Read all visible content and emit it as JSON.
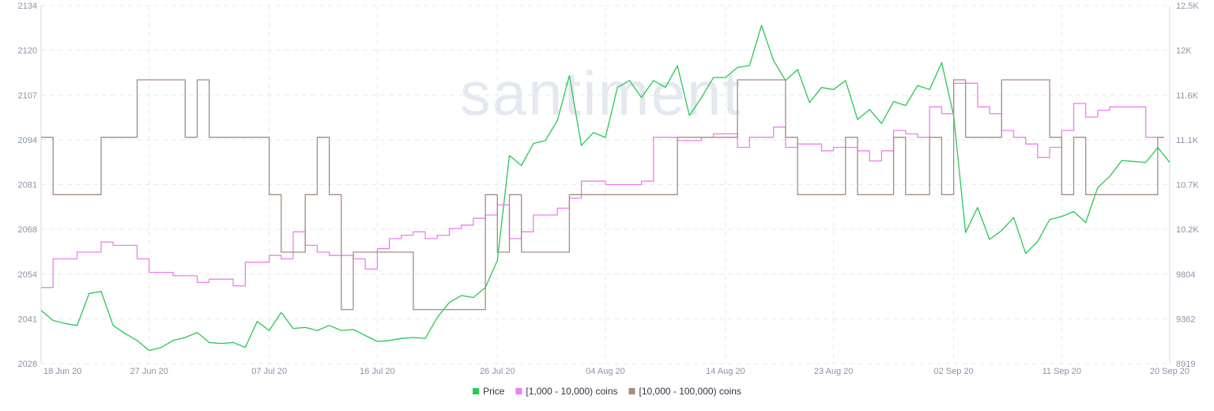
{
  "watermark": "santiment",
  "colors": {
    "price": "#26c953",
    "coins_1k_10k": "#f07cf2",
    "coins_10k_100k": "#a38d82",
    "grid": "#e6e9ef",
    "axis_text": "#8a94a6"
  },
  "chart_data": {
    "type": "line",
    "title": "",
    "xlabel": "",
    "grid": true,
    "legend_placement": "bottom-center",
    "x_ticks": [
      "18 Jun 20",
      "27 Jun 20",
      "07 Jul 20",
      "16 Jul 20",
      "26 Jul 20",
      "04 Aug 20",
      "14 Aug 20",
      "23 Aug 20",
      "02 Sep 20",
      "11 Sep 20",
      "20 Sep 20"
    ],
    "x_range": [
      "18 Jun 20",
      "20 Sep 20"
    ],
    "left_axis": {
      "ticks": [
        "2134",
        "2120",
        "2107",
        "2094",
        "2081",
        "2068",
        "2054",
        "2041",
        "2028"
      ],
      "range": [
        2028,
        2134
      ]
    },
    "right_axis": {
      "ticks": [
        "12.5K",
        "12K",
        "11.6K",
        "11.1K",
        "10.7K",
        "10.2K",
        "9804",
        "9362",
        "8919"
      ],
      "range": [
        8919,
        12500
      ]
    },
    "series": [
      {
        "name": "Price",
        "axis": "right",
        "color": "#26c953",
        "points": [
          [
            "2020-06-18",
            9450
          ],
          [
            "2020-06-19",
            9350
          ],
          [
            "2020-06-20",
            9320
          ],
          [
            "2020-06-21",
            9300
          ],
          [
            "2020-06-22",
            9620
          ],
          [
            "2020-06-23",
            9640
          ],
          [
            "2020-06-24",
            9300
          ],
          [
            "2020-06-25",
            9220
          ],
          [
            "2020-06-26",
            9150
          ],
          [
            "2020-06-27",
            9050
          ],
          [
            "2020-06-28",
            9080
          ],
          [
            "2020-06-29",
            9150
          ],
          [
            "2020-06-30",
            9180
          ],
          [
            "2020-07-01",
            9230
          ],
          [
            "2020-07-02",
            9130
          ],
          [
            "2020-07-03",
            9120
          ],
          [
            "2020-07-04",
            9130
          ],
          [
            "2020-07-05",
            9080
          ],
          [
            "2020-07-06",
            9340
          ],
          [
            "2020-07-07",
            9250
          ],
          [
            "2020-07-08",
            9430
          ],
          [
            "2020-07-09",
            9270
          ],
          [
            "2020-07-10",
            9280
          ],
          [
            "2020-07-11",
            9250
          ],
          [
            "2020-07-12",
            9300
          ],
          [
            "2020-07-13",
            9250
          ],
          [
            "2020-07-14",
            9260
          ],
          [
            "2020-07-15",
            9200
          ],
          [
            "2020-07-16",
            9140
          ],
          [
            "2020-07-17",
            9150
          ],
          [
            "2020-07-18",
            9170
          ],
          [
            "2020-07-19",
            9180
          ],
          [
            "2020-07-20",
            9170
          ],
          [
            "2020-07-21",
            9380
          ],
          [
            "2020-07-22",
            9530
          ],
          [
            "2020-07-23",
            9600
          ],
          [
            "2020-07-24",
            9580
          ],
          [
            "2020-07-25",
            9680
          ],
          [
            "2020-07-26",
            9950
          ],
          [
            "2020-07-27",
            11000
          ],
          [
            "2020-07-28",
            10900
          ],
          [
            "2020-07-29",
            11120
          ],
          [
            "2020-07-30",
            11150
          ],
          [
            "2020-07-31",
            11350
          ],
          [
            "2020-08-01",
            11800
          ],
          [
            "2020-08-02",
            11100
          ],
          [
            "2020-08-03",
            11230
          ],
          [
            "2020-08-04",
            11180
          ],
          [
            "2020-08-05",
            11680
          ],
          [
            "2020-08-06",
            11750
          ],
          [
            "2020-08-07",
            11580
          ],
          [
            "2020-08-08",
            11750
          ],
          [
            "2020-08-09",
            11680
          ],
          [
            "2020-08-10",
            11900
          ],
          [
            "2020-08-11",
            11400
          ],
          [
            "2020-08-12",
            11580
          ],
          [
            "2020-08-13",
            11780
          ],
          [
            "2020-08-14",
            11780
          ],
          [
            "2020-08-15",
            11880
          ],
          [
            "2020-08-16",
            11900
          ],
          [
            "2020-08-17",
            12300
          ],
          [
            "2020-08-18",
            11950
          ],
          [
            "2020-08-19",
            11750
          ],
          [
            "2020-08-20",
            11860
          ],
          [
            "2020-08-21",
            11530
          ],
          [
            "2020-08-22",
            11680
          ],
          [
            "2020-08-23",
            11660
          ],
          [
            "2020-08-24",
            11750
          ],
          [
            "2020-08-25",
            11360
          ],
          [
            "2020-08-26",
            11460
          ],
          [
            "2020-08-27",
            11320
          ],
          [
            "2020-08-28",
            11540
          ],
          [
            "2020-08-29",
            11500
          ],
          [
            "2020-08-30",
            11700
          ],
          [
            "2020-08-31",
            11660
          ],
          [
            "2020-09-01",
            11930
          ],
          [
            "2020-09-02",
            11400
          ],
          [
            "2020-09-03",
            10230
          ],
          [
            "2020-09-04",
            10480
          ],
          [
            "2020-09-05",
            10160
          ],
          [
            "2020-09-06",
            10250
          ],
          [
            "2020-09-07",
            10380
          ],
          [
            "2020-09-08",
            10020
          ],
          [
            "2020-09-09",
            10140
          ],
          [
            "2020-09-10",
            10360
          ],
          [
            "2020-09-11",
            10390
          ],
          [
            "2020-09-12",
            10440
          ],
          [
            "2020-09-13",
            10330
          ],
          [
            "2020-09-14",
            10680
          ],
          [
            "2020-09-15",
            10790
          ],
          [
            "2020-09-16",
            10950
          ],
          [
            "2020-09-17",
            10940
          ],
          [
            "2020-09-18",
            10930
          ],
          [
            "2020-09-19",
            11080
          ],
          [
            "2020-09-20",
            10930
          ]
        ]
      },
      {
        "name": "[1,000 - 10,000) coins",
        "axis": "left",
        "color": "#f07cf2",
        "points": [
          [
            "2020-06-18",
            2050.5
          ],
          [
            "2020-06-19",
            2059
          ],
          [
            "2020-06-20",
            2059
          ],
          [
            "2020-06-21",
            2061
          ],
          [
            "2020-06-23",
            2064
          ],
          [
            "2020-06-24",
            2063
          ],
          [
            "2020-06-26",
            2059
          ],
          [
            "2020-06-27",
            2055
          ],
          [
            "2020-06-29",
            2054
          ],
          [
            "2020-07-01",
            2052
          ],
          [
            "2020-07-02",
            2053
          ],
          [
            "2020-07-04",
            2051
          ],
          [
            "2020-07-05",
            2058
          ],
          [
            "2020-07-07",
            2060
          ],
          [
            "2020-07-08",
            2059
          ],
          [
            "2020-07-09",
            2067
          ],
          [
            "2020-07-10",
            2063
          ],
          [
            "2020-07-11",
            2061
          ],
          [
            "2020-07-12",
            2060
          ],
          [
            "2020-07-14",
            2059
          ],
          [
            "2020-07-15",
            2056
          ],
          [
            "2020-07-16",
            2062
          ],
          [
            "2020-07-17",
            2065
          ],
          [
            "2020-07-18",
            2066
          ],
          [
            "2020-07-19",
            2067
          ],
          [
            "2020-07-20",
            2065
          ],
          [
            "2020-07-21",
            2066
          ],
          [
            "2020-07-22",
            2068
          ],
          [
            "2020-07-23",
            2069
          ],
          [
            "2020-07-24",
            2071
          ],
          [
            "2020-07-25",
            2072
          ],
          [
            "2020-07-26",
            2075
          ],
          [
            "2020-07-27",
            2065
          ],
          [
            "2020-07-28",
            2067
          ],
          [
            "2020-07-29",
            2072
          ],
          [
            "2020-07-31",
            2074
          ],
          [
            "2020-08-01",
            2077
          ],
          [
            "2020-08-02",
            2082
          ],
          [
            "2020-08-04",
            2081
          ],
          [
            "2020-08-07",
            2082
          ],
          [
            "2020-08-08",
            2095
          ],
          [
            "2020-08-10",
            2094
          ],
          [
            "2020-08-12",
            2095
          ],
          [
            "2020-08-13",
            2096
          ],
          [
            "2020-08-15",
            2092
          ],
          [
            "2020-08-16",
            2095
          ],
          [
            "2020-08-18",
            2098
          ],
          [
            "2020-08-19",
            2092
          ],
          [
            "2020-08-20",
            2093
          ],
          [
            "2020-08-21",
            2093
          ],
          [
            "2020-08-22",
            2091
          ],
          [
            "2020-08-23",
            2092
          ],
          [
            "2020-08-25",
            2091
          ],
          [
            "2020-08-26",
            2088
          ],
          [
            "2020-08-27",
            2091
          ],
          [
            "2020-08-28",
            2097
          ],
          [
            "2020-08-29",
            2096
          ],
          [
            "2020-08-30",
            2095
          ],
          [
            "2020-08-31",
            2104
          ],
          [
            "2020-09-01",
            2102
          ],
          [
            "2020-09-02",
            2111
          ],
          [
            "2020-09-03",
            2111
          ],
          [
            "2020-09-04",
            2104
          ],
          [
            "2020-09-05",
            2102
          ],
          [
            "2020-09-06",
            2097
          ],
          [
            "2020-09-07",
            2095
          ],
          [
            "2020-09-08",
            2093
          ],
          [
            "2020-09-09",
            2089
          ],
          [
            "2020-09-10",
            2092
          ],
          [
            "2020-09-11",
            2097
          ],
          [
            "2020-09-12",
            2105
          ],
          [
            "2020-09-13",
            2101
          ],
          [
            "2020-09-14",
            2103
          ],
          [
            "2020-09-15",
            2104
          ],
          [
            "2020-09-16",
            2104
          ],
          [
            "2020-09-17",
            2104
          ],
          [
            "2020-09-18",
            2095
          ],
          [
            "2020-09-19",
            2095
          ]
        ]
      },
      {
        "name": "[10,000 - 100,000) coins",
        "axis": "left",
        "color": "#a38d82",
        "points": [
          [
            "2020-06-18",
            2095
          ],
          [
            "2020-06-19",
            2078
          ],
          [
            "2020-06-23",
            2095
          ],
          [
            "2020-06-26",
            2112
          ],
          [
            "2020-06-30",
            2095
          ],
          [
            "2020-07-01",
            2112
          ],
          [
            "2020-07-02",
            2095
          ],
          [
            "2020-07-07",
            2078
          ],
          [
            "2020-07-08",
            2061
          ],
          [
            "2020-07-10",
            2078
          ],
          [
            "2020-07-11",
            2095
          ],
          [
            "2020-07-12",
            2078
          ],
          [
            "2020-07-13",
            2044
          ],
          [
            "2020-07-14",
            2061
          ],
          [
            "2020-07-19",
            2044
          ],
          [
            "2020-07-25",
            2078
          ],
          [
            "2020-07-26",
            2061
          ],
          [
            "2020-07-27",
            2078
          ],
          [
            "2020-07-28",
            2061
          ],
          [
            "2020-08-01",
            2078
          ],
          [
            "2020-08-03",
            2078
          ],
          [
            "2020-08-10",
            2095
          ],
          [
            "2020-08-15",
            2112
          ],
          [
            "2020-08-19",
            2095
          ],
          [
            "2020-08-20",
            2078
          ],
          [
            "2020-08-24",
            2095
          ],
          [
            "2020-08-25",
            2078
          ],
          [
            "2020-08-28",
            2095
          ],
          [
            "2020-08-29",
            2078
          ],
          [
            "2020-08-31",
            2095
          ],
          [
            "2020-09-01",
            2078
          ],
          [
            "2020-09-02",
            2112
          ],
          [
            "2020-09-03",
            2095
          ],
          [
            "2020-09-06",
            2112
          ],
          [
            "2020-09-10",
            2095
          ],
          [
            "2020-09-11",
            2078
          ],
          [
            "2020-09-12",
            2095
          ],
          [
            "2020-09-13",
            2078
          ],
          [
            "2020-09-19",
            2095
          ]
        ]
      }
    ]
  }
}
